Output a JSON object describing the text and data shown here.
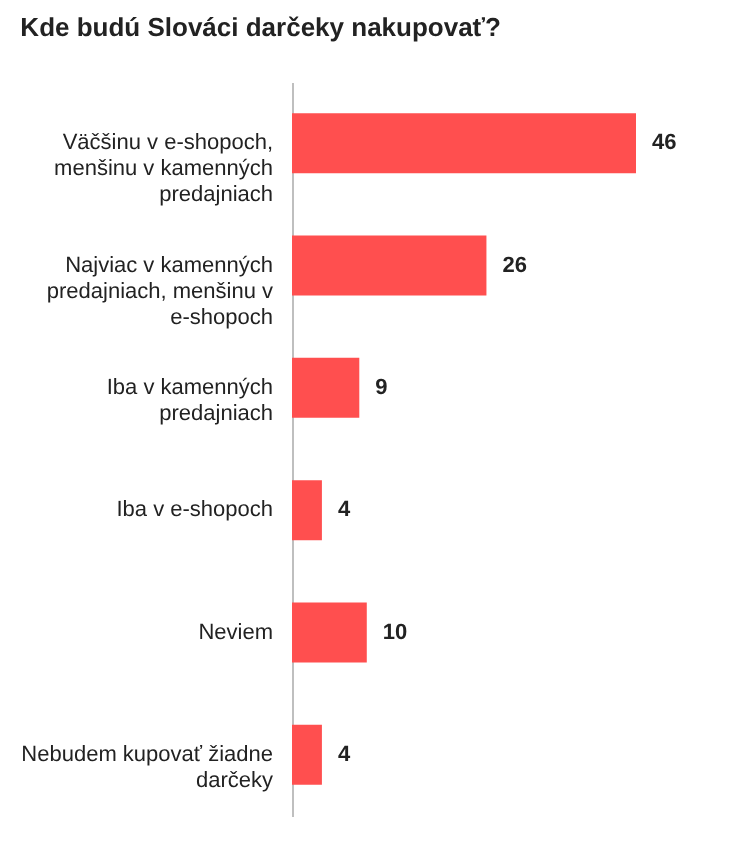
{
  "chart_data": {
    "type": "bar",
    "orientation": "horizontal",
    "relative": false,
    "title": "Kde budú Slováci darčeky nakupovať?",
    "categories": [
      "Väčšinu v e-shopoch, menšinu v kamenných predajniach",
      "Najviac v kamenných predajniach, menšinu v e-shopoch",
      "Iba v kamenných predajniach",
      "Iba v e-shopoch",
      "Neviem",
      "Nebudem kupovať žiadne darčeky"
    ],
    "values": [
      46,
      26,
      9,
      4,
      10,
      4
    ],
    "color": "#ff4f4f",
    "data_labels": true
  }
}
